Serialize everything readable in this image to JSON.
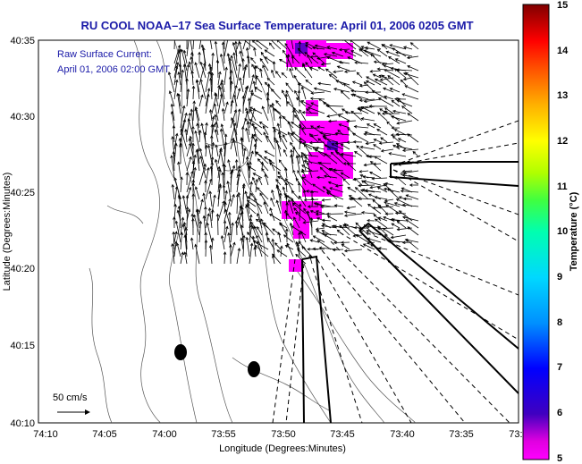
{
  "title": "RU COOL  NOAA–17  Sea Surface Temperature:  April 01, 2006 0205 GMT",
  "overlay": {
    "line1": "Raw Surface Current:",
    "line2": "April 01, 2006 02:00 GMT"
  },
  "scale_label": "50 cm/s",
  "axes": {
    "xlabel": "Longitude (Degrees:Minutes)",
    "ylabel": "Latitude (Degrees:Minutes)",
    "x_ticks": [
      "74:10",
      "74:05",
      "74:00",
      "73:55",
      "73:50",
      "73:45",
      "73:40",
      "73:35",
      "73:3"
    ],
    "y_ticks": [
      "40:35",
      "40:30",
      "40:25",
      "40:20",
      "40:15",
      "40:10"
    ]
  },
  "colorbar": {
    "label": "Temperature (°C)",
    "min": 5,
    "max": 15,
    "ticks": [
      "15",
      "14",
      "13",
      "12",
      "11",
      "10",
      "9",
      "8",
      "7",
      "6",
      "5"
    ],
    "colors": [
      "#ff00ff",
      "#e000e0",
      "#4000c0",
      "#0000ff",
      "#0090ff",
      "#00d8ff",
      "#00ffb0",
      "#40ff40",
      "#b0ff00",
      "#ffff00",
      "#ffb000",
      "#ff5000",
      "#ff0000",
      "#c00000",
      "#800000"
    ]
  }
}
